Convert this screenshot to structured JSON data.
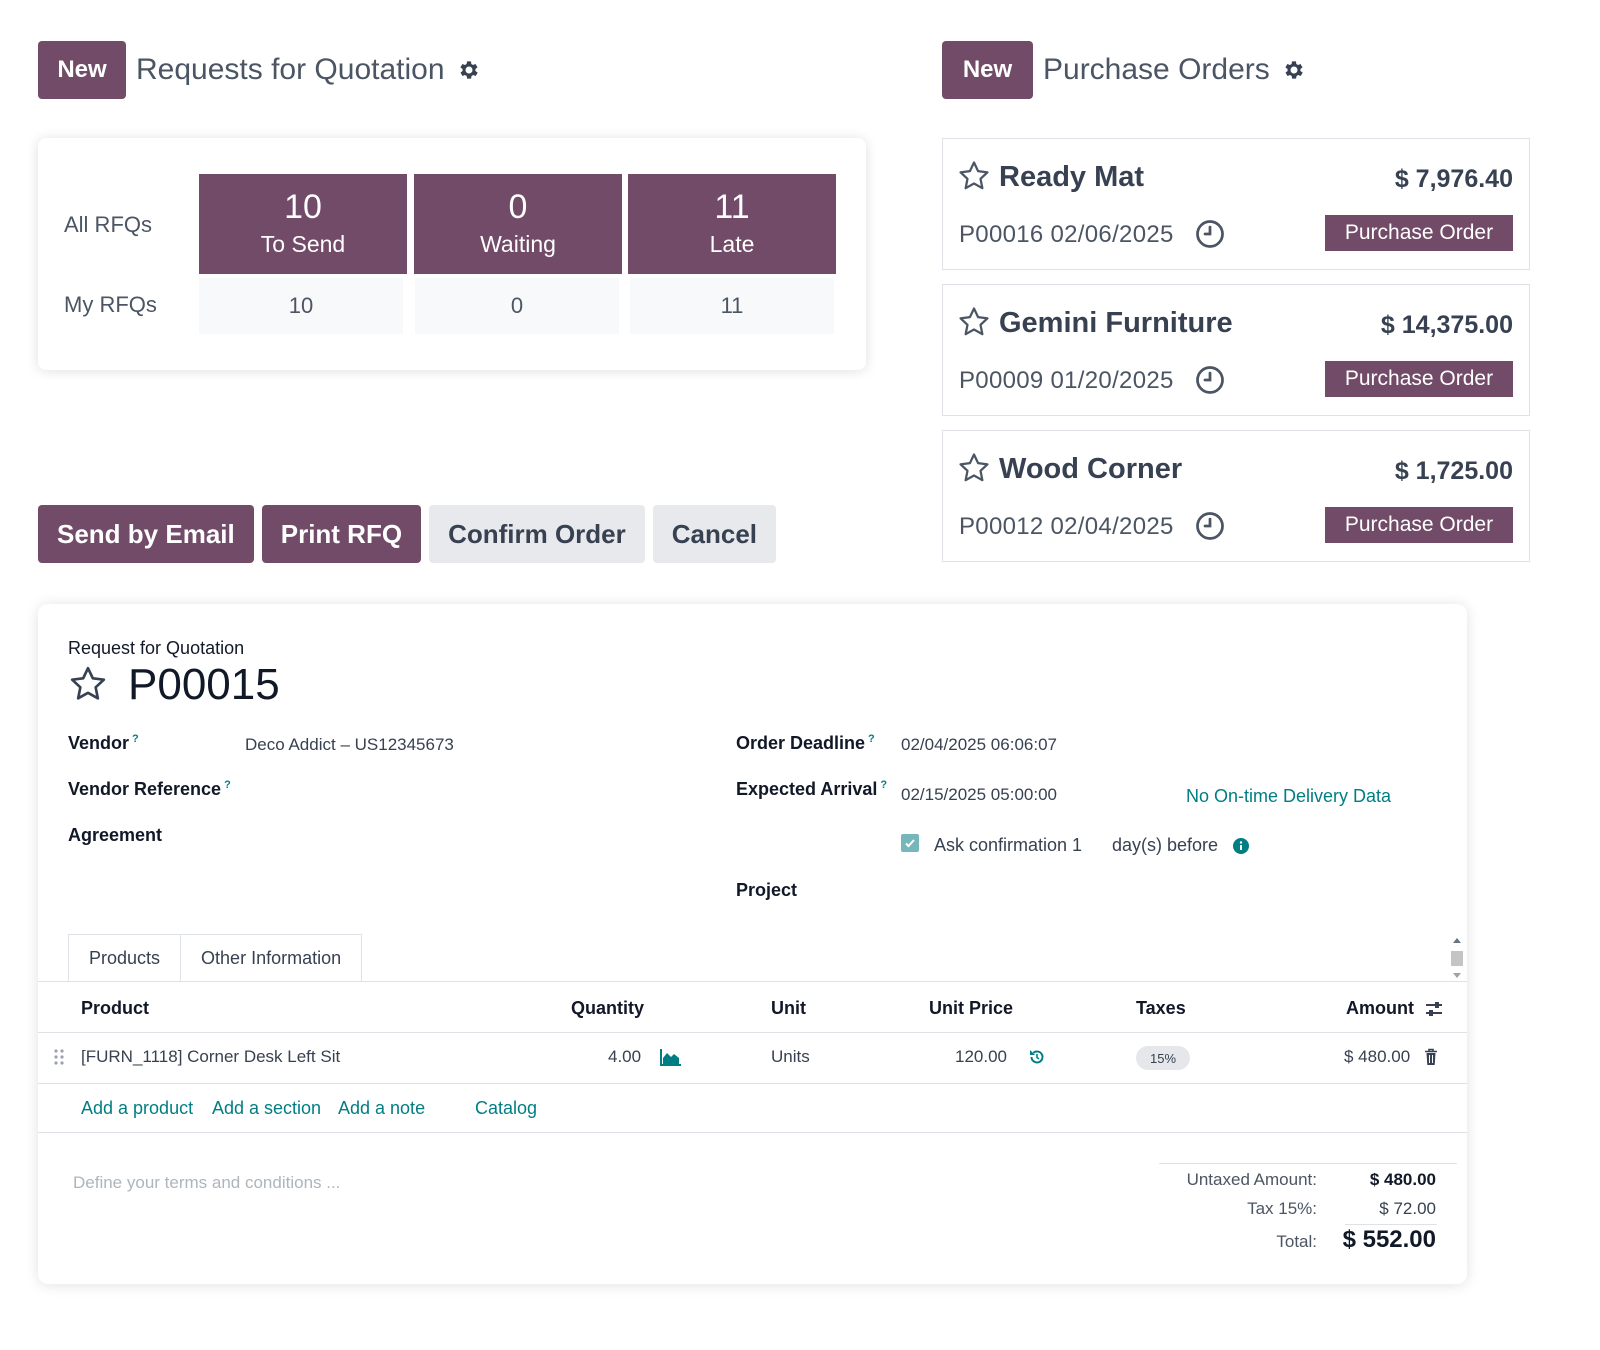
{
  "rfq_header": {
    "new_label": "New",
    "title": "Requests for Quotation",
    "settings_icon": "gear-icon"
  },
  "po_header": {
    "new_label": "New",
    "title": "Purchase Orders",
    "settings_icon": "gear-icon"
  },
  "rfq_stats": {
    "row_all": "All RFQs",
    "row_mine": "My RFQs",
    "tiles": [
      {
        "count": "10",
        "label": "To Send",
        "mine": "10"
      },
      {
        "count": "0",
        "label": "Waiting",
        "mine": "0"
      },
      {
        "count": "11",
        "label": "Late",
        "mine": "11"
      }
    ]
  },
  "purchase_orders": [
    {
      "vendor": "Ready Mat",
      "amount": "$ 7,976.40",
      "ref": "P00016 02/06/2025",
      "status": "Purchase Order"
    },
    {
      "vendor": "Gemini Furniture",
      "amount": "$ 14,375.00",
      "ref": "P00009 01/20/2025",
      "status": "Purchase Order"
    },
    {
      "vendor": "Wood Corner",
      "amount": "$ 1,725.00",
      "ref": "P00012 02/04/2025",
      "status": "Purchase Order"
    }
  ],
  "actions": {
    "send_email": "Send by Email",
    "print_rfq": "Print RFQ",
    "confirm": "Confirm Order",
    "cancel": "Cancel"
  },
  "form": {
    "doc_type": "Request for Quotation",
    "doc_name": "P00015",
    "vendor_label": "Vendor",
    "vendor_value": "Deco Addict – US12345673",
    "vendor_ref_label": "Vendor Reference",
    "agreement_label": "Agreement",
    "deadline_label": "Order Deadline",
    "deadline_value": "02/04/2025 06:06:07",
    "arrival_label": "Expected Arrival",
    "arrival_value": "02/15/2025 05:00:00",
    "ontime_link": "No On-time Delivery Data",
    "ask_confirmation_label": "Ask confirmation",
    "ask_confirmation_checked": true,
    "ask_days_value": "1",
    "days_before_label": "day(s) before",
    "project_label": "Project",
    "help_mark": "?"
  },
  "tabs": [
    "Products",
    "Other Information"
  ],
  "lines": {
    "columns": [
      "Product",
      "Quantity",
      "Unit",
      "Unit Price",
      "Taxes",
      "Amount"
    ],
    "rows": [
      {
        "product": "[FURN_1118] Corner Desk Left Sit",
        "quantity": "4.00",
        "unit": "Units",
        "unit_price": "120.00",
        "taxes": "15%",
        "amount": "$ 480.00"
      }
    ],
    "add_product": "Add a product",
    "add_section": "Add a section",
    "add_note": "Add a note",
    "catalog": "Catalog"
  },
  "terms_placeholder": "Define your terms and conditions ...",
  "totals": {
    "untaxed_label": "Untaxed Amount:",
    "untaxed_value": "$ 480.00",
    "tax_label": "Tax 15%:",
    "tax_value": "$ 72.00",
    "total_label": "Total:",
    "total_value": "$ 552.00"
  },
  "colors": {
    "primary": "#714B67",
    "link": "#017e84",
    "secondary_btn": "#e7e9ed"
  }
}
